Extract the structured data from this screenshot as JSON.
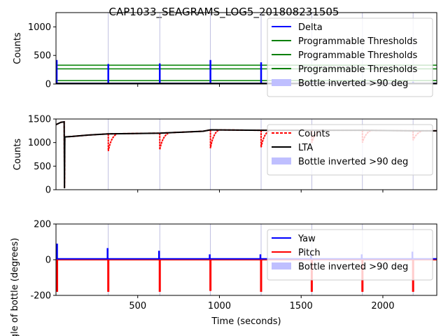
{
  "figure": {
    "title": "CAP1033_SEAGRAMS_LOG5_201808231505",
    "xlabel": "Time (seconds)"
  },
  "colors": {
    "delta": "#0000ff",
    "threshold": "#008000",
    "counts": "#ff0000",
    "lta": "#000000",
    "yaw": "#0000ff",
    "pitch": "#ff0000",
    "inverted_fill": "#bfbfff",
    "event_line": "#b0b0d8"
  },
  "chart_data": [
    {
      "type": "line",
      "ylabel": "Counts",
      "xlim": [
        0,
        2330
      ],
      "ylim": [
        0,
        1250
      ],
      "xticks": [],
      "yticks": [
        0,
        500,
        1000
      ],
      "grid": false,
      "legend_position": "top-right",
      "inverted_events": [
        320,
        635,
        945,
        1255,
        1565,
        1875,
        2185
      ],
      "series": [
        {
          "name": "Delta",
          "baseline": 10,
          "spikes": [
            [
              0,
              420
            ],
            [
              320,
              350
            ],
            [
              635,
              360
            ],
            [
              945,
              420
            ],
            [
              1255,
              380
            ],
            [
              1565,
              40
            ],
            [
              1875,
              40
            ],
            [
              2185,
              40
            ]
          ]
        },
        {
          "name": "Programmable Thresholds",
          "values": [
            330,
            330
          ]
        },
        {
          "name": "Programmable Thresholds",
          "values": [
            265,
            265
          ]
        },
        {
          "name": "Programmable Thresholds",
          "values": [
            60,
            60
          ]
        },
        {
          "name": "Bottle inverted >90 deg"
        }
      ]
    },
    {
      "type": "line",
      "ylabel": "Counts",
      "xlim": [
        0,
        2330
      ],
      "ylim": [
        0,
        1500
      ],
      "xticks": [],
      "yticks": [
        0,
        500,
        1000,
        1500
      ],
      "grid": false,
      "legend_position": "top-right",
      "inverted_events": [
        320,
        635,
        945,
        1255,
        1565,
        1875,
        2185
      ],
      "series": [
        {
          "name": "Counts",
          "dips": [
            [
              320,
              820
            ],
            [
              635,
              850
            ],
            [
              945,
              880
            ],
            [
              1255,
              900
            ],
            [
              1565,
              1000
            ],
            [
              1875,
              1000
            ],
            [
              2185,
              1050
            ]
          ]
        },
        {
          "name": "LTA",
          "points": [
            [
              0,
              1380
            ],
            [
              30,
              1430
            ],
            [
              50,
              1440
            ],
            [
              52,
              30
            ],
            [
              54,
              1120
            ],
            [
              100,
              1130
            ],
            [
              200,
              1160
            ],
            [
              320,
              1185
            ],
            [
              635,
              1200
            ],
            [
              900,
              1240
            ],
            [
              945,
              1270
            ],
            [
              1255,
              1260
            ],
            [
              1565,
              1260
            ],
            [
              1875,
              1260
            ],
            [
              2185,
              1250
            ],
            [
              2330,
              1250
            ]
          ]
        },
        {
          "name": "Bottle inverted >90 deg"
        }
      ]
    },
    {
      "type": "line",
      "ylabel": "Angle of bottle (degrees)",
      "xlabel": "Time (seconds)",
      "xlim": [
        0,
        2330
      ],
      "ylim": [
        -200,
        200
      ],
      "xticks": [
        500,
        1000,
        1500,
        2000
      ],
      "yticks": [
        -200,
        0,
        200
      ],
      "grid": false,
      "legend_position": "top-right",
      "inverted_events": [
        320,
        635,
        945,
        1255,
        1565,
        1875,
        2185
      ],
      "series": [
        {
          "name": "Yaw",
          "baseline": 5,
          "spikes": [
            [
              0,
              90
            ],
            [
              320,
              65
            ],
            [
              635,
              50
            ],
            [
              945,
              30
            ],
            [
              1255,
              30
            ],
            [
              1565,
              30
            ],
            [
              1875,
              30
            ],
            [
              2185,
              45
            ]
          ]
        },
        {
          "name": "Pitch",
          "baseline": 0,
          "spikes": [
            [
              0,
              -180
            ],
            [
              320,
              -180
            ],
            [
              635,
              -180
            ],
            [
              945,
              -175
            ],
            [
              1255,
              -180
            ],
            [
              1565,
              -180
            ],
            [
              1875,
              -180
            ],
            [
              2185,
              -180
            ]
          ]
        },
        {
          "name": "Bottle inverted >90 deg"
        }
      ]
    }
  ]
}
